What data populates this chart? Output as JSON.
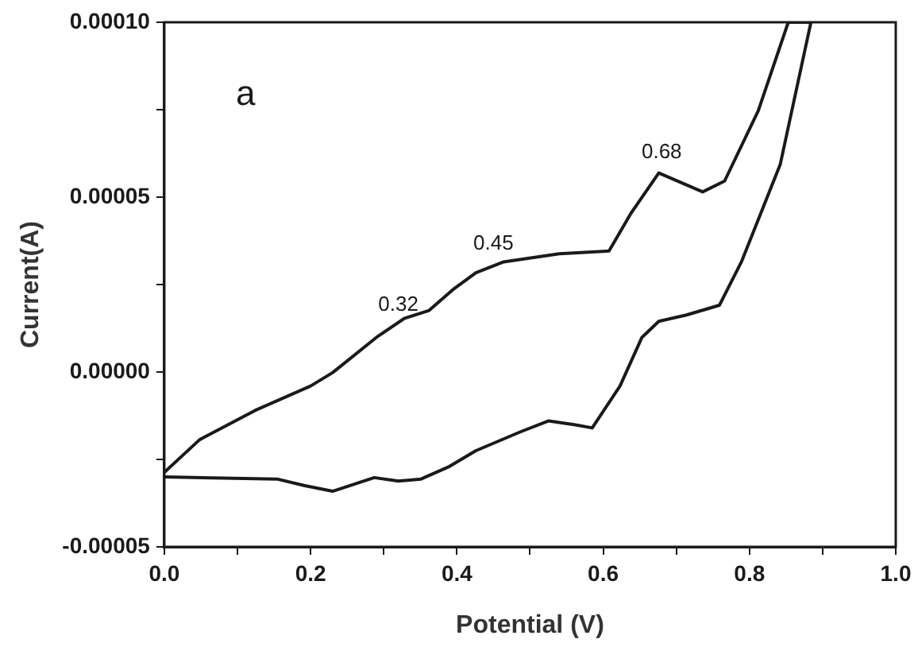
{
  "chart_data": {
    "type": "line",
    "xlabel": "Potential (V)",
    "ylabel": "Current(A)",
    "annotations": [
      "a",
      {
        "text": "0.32",
        "x": 0.32,
        "y": 1.35e-05
      },
      {
        "text": "0.45",
        "x": 0.45,
        "y": 3.1e-05
      },
      {
        "text": "0.68",
        "x": 0.68,
        "y": 5.7e-05
      }
    ],
    "xlim": [
      0,
      1
    ],
    "ylim": [
      -5e-05,
      0.0001
    ],
    "xticks": [
      {
        "value": 0,
        "label": "0.0"
      },
      {
        "value": 0.1,
        "label": null
      },
      {
        "value": 0.2,
        "label": "0.2"
      },
      {
        "value": 0.3,
        "label": null
      },
      {
        "value": 0.4,
        "label": "0.4"
      },
      {
        "value": 0.5,
        "label": null
      },
      {
        "value": 0.6,
        "label": "0.6"
      },
      {
        "value": 0.7,
        "label": null
      },
      {
        "value": 0.8,
        "label": "0.8"
      },
      {
        "value": 0.9,
        "label": null
      },
      {
        "value": 1,
        "label": "1.0"
      }
    ],
    "yticks": [
      {
        "value": -5e-05,
        "label": "-0.00005"
      },
      {
        "value": -2.5e-05,
        "label": null
      },
      {
        "value": 0,
        "label": "0.00000"
      },
      {
        "value": 2.5e-05,
        "label": null
      },
      {
        "value": 5e-05,
        "label": "0.00005"
      },
      {
        "value": 7.5e-05,
        "label": null
      },
      {
        "value": 0.0001,
        "label": "0.00010"
      }
    ],
    "marker": "none",
    "line_style": "solid",
    "series": [
      {
        "color": "#1a1a1a",
        "x": [
          0,
          0.048,
          0.124,
          0.2,
          0.23,
          0.29,
          0.328,
          0.362,
          0.396,
          0.426,
          0.464,
          0.54,
          0.608,
          0.638,
          0.676,
          0.736,
          0.766,
          0.812,
          0.853,
          0.884,
          0.842,
          0.789,
          0.759,
          0.714,
          0.676,
          0.653,
          0.623,
          0.585,
          0.562,
          0.525,
          0.487,
          0.426,
          0.388,
          0.351,
          0.32,
          0.287,
          0.23,
          0.192,
          0.154,
          0
        ],
        "values": [
          -2.87e-05,
          -1.94e-05,
          -1.1e-05,
          -4e-06,
          -2e-07,
          9.9e-06,
          1.53e-05,
          1.76e-05,
          2.38e-05,
          2.84e-05,
          3.15e-05,
          3.38e-05,
          3.46e-05,
          4.54e-05,
          5.69e-05,
          5.15e-05,
          5.46e-05,
          7.47e-05,
          0.0001,
          0.0001,
          5.93e-05,
          3.15e-05,
          1.91e-05,
          1.63e-05,
          1.45e-05,
          9.9e-06,
          -4e-06,
          -1.6e-05,
          -1.51e-05,
          -1.4e-05,
          -1.71e-05,
          -2.25e-05,
          -2.72e-05,
          -3.06e-05,
          -3.12e-05,
          -3.02e-05,
          -3.41e-05,
          -3.25e-05,
          -3.06e-05,
          -3e-05
        ]
      }
    ]
  }
}
